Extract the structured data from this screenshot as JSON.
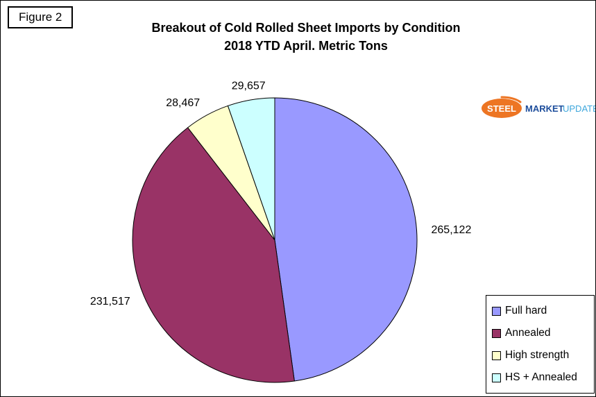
{
  "figure_label": "Figure 2",
  "title": {
    "line1": "Breakout of Cold Rolled Sheet Imports by Condition",
    "line2": "2018 YTD April. Metric Tons"
  },
  "logo": {
    "steel": "STEEL",
    "market": "MARKET",
    "update": "UPDATE",
    "accent_orange": "#ED7523",
    "blue_dark": "#1E4E9C",
    "blue_light": "#3FA7DC"
  },
  "chart_data": {
    "type": "pie",
    "title": "Breakout of Cold Rolled Sheet Imports by Condition",
    "subtitle": "2018 YTD April. Metric Tons",
    "start_angle_deg": 0,
    "direction": "clockwise",
    "legend_position": "bottom-right",
    "segments": [
      {
        "name": "Full hard",
        "value": 265122,
        "label": "265,122",
        "color": "#9999FF"
      },
      {
        "name": "Annealed",
        "value": 231517,
        "label": "231,517",
        "color": "#993366"
      },
      {
        "name": "High strength",
        "value": 28467,
        "label": "28,467",
        "color": "#FFFFCC"
      },
      {
        "name": "HS + Annealed",
        "value": 29657,
        "label": "29,657",
        "color": "#CCFFFF"
      }
    ]
  }
}
